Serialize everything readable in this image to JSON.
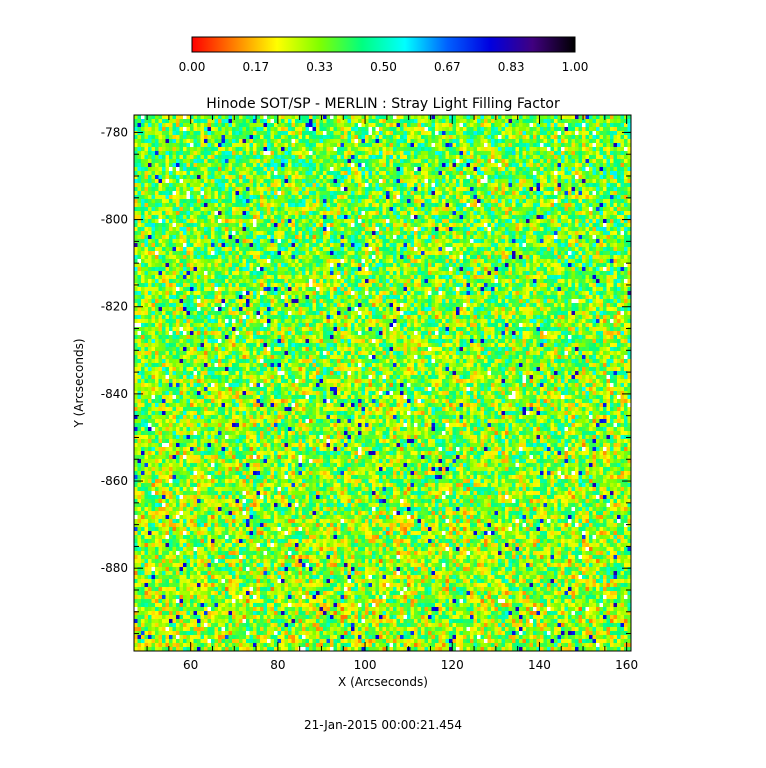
{
  "chart_data": {
    "type": "heatmap",
    "title": "Hinode SOT/SP - MERLIN : Stray Light Filling Factor",
    "xlabel": "X (Arcseconds)",
    "ylabel": "Y (Arcseconds)",
    "xlim": [
      47,
      161
    ],
    "ylim": [
      -899,
      -776
    ],
    "x_ticks": [
      60,
      80,
      100,
      120,
      140,
      160
    ],
    "y_ticks": [
      -780,
      -800,
      -820,
      -840,
      -860,
      -880
    ],
    "colorbar": {
      "range": [
        0.0,
        1.0
      ],
      "tick_labels": [
        "0.00",
        "0.17",
        "0.33",
        "0.50",
        "0.67",
        "0.83",
        "1.00"
      ],
      "colormap": [
        "#ff0000",
        "#ff8000",
        "#ffff00",
        "#80ff00",
        "#00ff80",
        "#00ffff",
        "#0060ff",
        "#0000e0",
        "#400080",
        "#000000"
      ]
    },
    "missing_color": "#ffffff",
    "field_description": "noisy per-pixel filling factor, mostly 0.15-0.45 with occasional values near 0.8",
    "timestamp": "21-Jan-2015 00:00:21.454"
  }
}
